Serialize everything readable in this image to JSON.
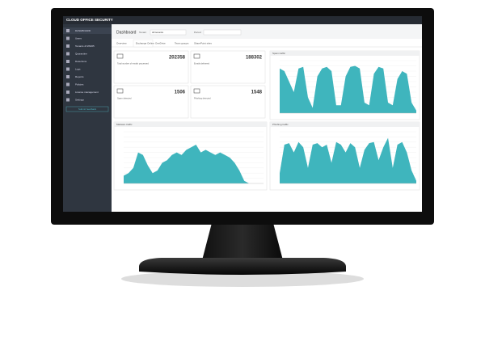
{
  "header": {
    "product": "CLOUD OFFICE SECURITY"
  },
  "sidebar": {
    "items": [
      "DASHBOARD",
      "Users",
      "Tenants & MS365",
      "Quarantine",
      "Detections",
      "Logs",
      "Reports",
      "Policies",
      "License management",
      "Settings"
    ],
    "feedback": "Submit feedback"
  },
  "toolbar": {
    "title": "Dashboard",
    "filter_label": "Tenant",
    "filter_value": "All tenants",
    "period_label": "Period",
    "tabs": [
      "Overview",
      "Exchange Online",
      "OneDrive",
      "Team groups",
      "SharePoint sites"
    ]
  },
  "cards": [
    {
      "value": 202358,
      "label": "Total number of emails processed"
    },
    {
      "value": 188302,
      "label": "Emails delivered"
    },
    {
      "value": 1506,
      "label": "Spam detected"
    },
    {
      "value": 1548,
      "label": "Phishing detected"
    }
  ],
  "charts": [
    {
      "title": "Spam traffic",
      "ylim": [
        0,
        100
      ],
      "values": [
        85,
        80,
        60,
        40,
        85,
        88,
        30,
        10,
        70,
        85,
        88,
        80,
        15,
        15,
        70,
        88,
        90,
        85,
        20,
        15,
        75,
        88,
        85,
        20,
        15,
        65,
        80,
        75,
        20,
        5
      ]
    },
    {
      "title": "Malware traffic",
      "ylim": [
        0,
        100
      ],
      "values": [
        15,
        20,
        30,
        60,
        55,
        35,
        20,
        25,
        40,
        45,
        55,
        60,
        55,
        65,
        70,
        75,
        60,
        65,
        60,
        55,
        60,
        55,
        50,
        40,
        25,
        5,
        0,
        0,
        0,
        0
      ]
    },
    {
      "title": "Phishing traffic",
      "ylim": [
        0,
        100
      ],
      "values": [
        20,
        75,
        78,
        60,
        80,
        70,
        30,
        75,
        78,
        70,
        75,
        40,
        80,
        75,
        60,
        78,
        70,
        30,
        65,
        78,
        80,
        45,
        70,
        88,
        30,
        75,
        80,
        60,
        25,
        5
      ]
    }
  ]
}
